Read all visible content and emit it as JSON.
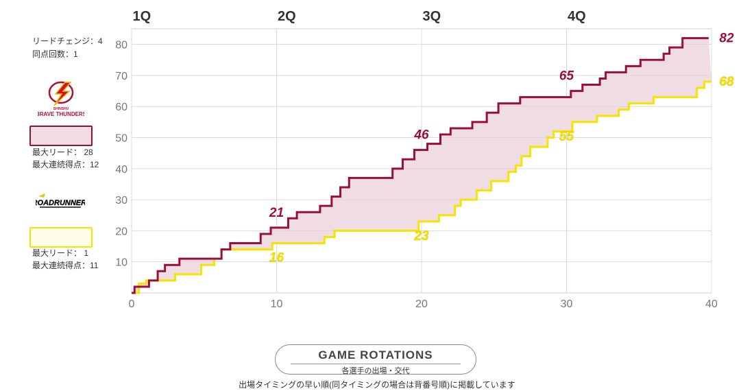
{
  "chart_data": {
    "type": "line",
    "quarters": [
      "1Q",
      "2Q",
      "3Q",
      "4Q"
    ],
    "x_ticks": [
      0,
      10,
      20,
      30,
      40
    ],
    "y_ticks": [
      10,
      20,
      30,
      40,
      50,
      60,
      70,
      80
    ],
    "xlim": [
      0,
      40
    ],
    "ylim": [
      0,
      85
    ],
    "grid": true,
    "series": [
      {
        "team": "brave-thunders",
        "color": "#9b0d3a",
        "points": [
          [
            0,
            0
          ],
          [
            0.2,
            2
          ],
          [
            1.2,
            4
          ],
          [
            1.8,
            7
          ],
          [
            2.3,
            9
          ],
          [
            3.3,
            11
          ],
          [
            6.2,
            14
          ],
          [
            6.8,
            16
          ],
          [
            8.9,
            19
          ],
          [
            9.6,
            21
          ],
          [
            10.8,
            24
          ],
          [
            11.4,
            26
          ],
          [
            13.0,
            28
          ],
          [
            13.8,
            31
          ],
          [
            14.4,
            34
          ],
          [
            15.0,
            37
          ],
          [
            18.0,
            40
          ],
          [
            18.7,
            43
          ],
          [
            19.5,
            46
          ],
          [
            20.4,
            48
          ],
          [
            21.3,
            51
          ],
          [
            22.0,
            53
          ],
          [
            23.5,
            55
          ],
          [
            24.5,
            58
          ],
          [
            25.3,
            61
          ],
          [
            26.8,
            63
          ],
          [
            28.4,
            63
          ],
          [
            30.3,
            65
          ],
          [
            31.1,
            67
          ],
          [
            32.3,
            69
          ],
          [
            32.7,
            71
          ],
          [
            34.1,
            73
          ],
          [
            35.1,
            75
          ],
          [
            36.7,
            77
          ],
          [
            37.1,
            79
          ],
          [
            38.0,
            82
          ],
          [
            39.8,
            82
          ]
        ],
        "labels": [
          {
            "x": 10,
            "y": 21,
            "text": "21"
          },
          {
            "x": 20,
            "y": 46,
            "text": "46"
          },
          {
            "x": 30,
            "y": 65,
            "text": "65"
          },
          {
            "x": 40,
            "y": 82,
            "text": "82"
          }
        ]
      },
      {
        "team": "roadrunners",
        "color": "#f5e300",
        "points": [
          [
            0,
            0
          ],
          [
            0.5,
            3
          ],
          [
            1.0,
            4
          ],
          [
            2.2,
            4
          ],
          [
            3.0,
            6
          ],
          [
            4.8,
            9
          ],
          [
            5.7,
            11
          ],
          [
            6.2,
            14
          ],
          [
            9.7,
            16
          ],
          [
            13.3,
            18
          ],
          [
            14.0,
            20
          ],
          [
            19.0,
            20
          ],
          [
            19.8,
            23
          ],
          [
            21.2,
            25
          ],
          [
            22.3,
            28
          ],
          [
            22.7,
            30
          ],
          [
            23.8,
            33
          ],
          [
            24.8,
            36
          ],
          [
            26.0,
            39
          ],
          [
            26.5,
            41
          ],
          [
            26.9,
            44
          ],
          [
            27.5,
            47
          ],
          [
            28.7,
            50
          ],
          [
            29.1,
            52
          ],
          [
            30.4,
            55
          ],
          [
            32.1,
            57
          ],
          [
            33.6,
            59
          ],
          [
            34.3,
            61
          ],
          [
            36.0,
            63
          ],
          [
            39.0,
            66
          ],
          [
            39.5,
            68
          ],
          [
            40.0,
            68
          ]
        ],
        "labels": [
          {
            "x": 10,
            "y": 16,
            "text": "16"
          },
          {
            "x": 20,
            "y": 23,
            "text": "23"
          },
          {
            "x": 30,
            "y": 55,
            "text": "55"
          },
          {
            "x": 40,
            "y": 68,
            "text": "68"
          }
        ]
      }
    ],
    "fill_between": "#f0dde4"
  },
  "sidebar": {
    "lead_changes": "リードチェンジ：4",
    "ties": "同点回数：1",
    "team1_logo_text1": "SHINSHU",
    "team1_logo_text2": "BRAVE THUNDERS",
    "team1_max_lead": "最大リード：  28",
    "team1_max_run": "最大連続得点：12",
    "team2_logo_text1": "ROADRUNNERS",
    "team2_max_lead": "最大リード：  1",
    "team2_max_run": "最大連続得点：11",
    "colors": {
      "team1": "#9b0d3a",
      "team1_fill": "#f0dde4",
      "team2": "#f5e300",
      "team2_fill": "#fffde8"
    }
  },
  "footer": {
    "button_title": "GAME ROTATIONS",
    "button_sub": "各選手の出場・交代",
    "note": "出場タイミングの早い順(同タイミングの場合は背番号順)に掲載しています"
  }
}
